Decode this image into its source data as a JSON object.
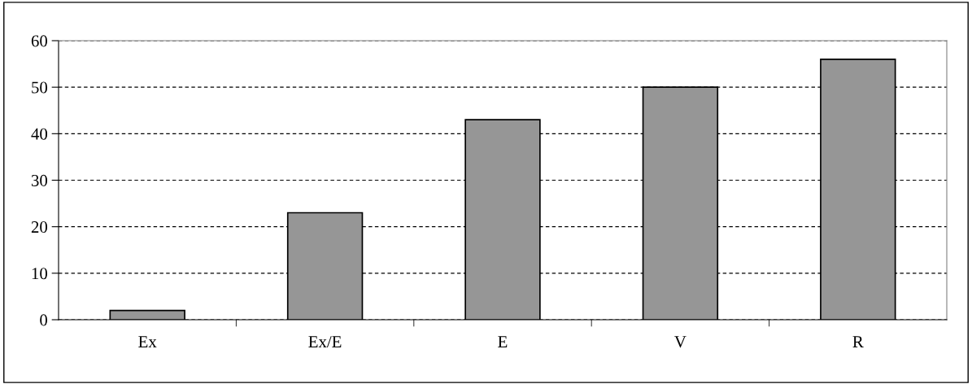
{
  "chart_data": {
    "type": "bar",
    "categories": [
      "Ex",
      "Ex/E",
      "E",
      "V",
      "R"
    ],
    "values": [
      2,
      23,
      43,
      50,
      56
    ],
    "color": "#969696",
    "ylim": [
      0,
      60
    ],
    "yticks": [
      0,
      10,
      20,
      30,
      40,
      50,
      60
    ],
    "grid": "y"
  }
}
